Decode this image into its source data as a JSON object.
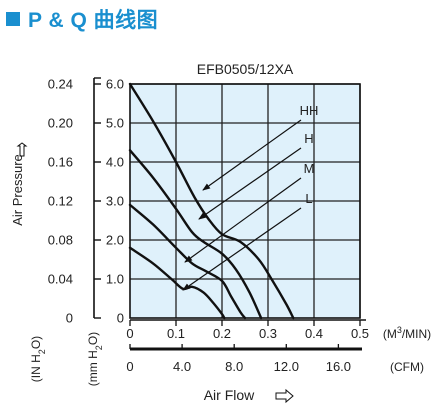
{
  "heading": "P & Q 曲线图",
  "colors": {
    "brand": "#1a8fcf",
    "plot_bg": "#dff1fb",
    "grid": "#222222",
    "curve": "#111111"
  },
  "chart_data": {
    "type": "line",
    "title": "EFB0505/12XA",
    "x_primary": {
      "unit": "(M³/MIN)",
      "ticks": [
        "0",
        "0.1",
        "0.2",
        "0.3",
        "0.4",
        "0.5"
      ],
      "range": [
        0,
        0.5
      ]
    },
    "x_secondary": {
      "unit": "(CFM)",
      "ticks": [
        "0",
        "4.0",
        "8.0",
        "12.0",
        "16.0"
      ],
      "range": [
        0,
        17.66
      ]
    },
    "xlabel": "Air Flow",
    "y_left": {
      "label": "Air Pressure",
      "unit": "(IN H₂O)",
      "ticks": [
        "0",
        "0.04",
        "0.08",
        "0.12",
        "0.16",
        "0.20",
        "0.24"
      ]
    },
    "y_right": {
      "unit": "(mm H₂O)",
      "ticks": [
        "0",
        "1.0",
        "2.0",
        "3.0",
        "4.0",
        "5.0",
        "6.0"
      ],
      "range": [
        0,
        6.0
      ]
    },
    "series": [
      {
        "name": "HH",
        "points": [
          [
            0,
            6.0
          ],
          [
            0.05,
            5.05
          ],
          [
            0.1,
            4.0
          ],
          [
            0.14,
            3.1
          ],
          [
            0.17,
            2.55
          ],
          [
            0.2,
            2.15
          ],
          [
            0.24,
            1.95
          ],
          [
            0.28,
            1.5
          ],
          [
            0.31,
            0.95
          ],
          [
            0.34,
            0.35
          ],
          [
            0.355,
            0
          ]
        ]
      },
      {
        "name": "H",
        "points": [
          [
            0,
            4.3
          ],
          [
            0.05,
            3.6
          ],
          [
            0.1,
            2.8
          ],
          [
            0.135,
            2.2
          ],
          [
            0.16,
            1.95
          ],
          [
            0.2,
            1.65
          ],
          [
            0.23,
            1.25
          ],
          [
            0.26,
            0.65
          ],
          [
            0.285,
            0
          ]
        ]
      },
      {
        "name": "M",
        "points": [
          [
            0,
            2.9
          ],
          [
            0.05,
            2.4
          ],
          [
            0.1,
            1.8
          ],
          [
            0.135,
            1.4
          ],
          [
            0.165,
            1.2
          ],
          [
            0.2,
            0.95
          ],
          [
            0.22,
            0.55
          ],
          [
            0.24,
            0.15
          ],
          [
            0.25,
            0
          ]
        ]
      },
      {
        "name": "L",
        "points": [
          [
            0,
            1.8
          ],
          [
            0.05,
            1.4
          ],
          [
            0.09,
            1.0
          ],
          [
            0.115,
            0.75
          ],
          [
            0.135,
            0.8
          ],
          [
            0.16,
            0.65
          ],
          [
            0.18,
            0.4
          ],
          [
            0.2,
            0.1
          ],
          [
            0.205,
            0
          ]
        ]
      }
    ]
  }
}
